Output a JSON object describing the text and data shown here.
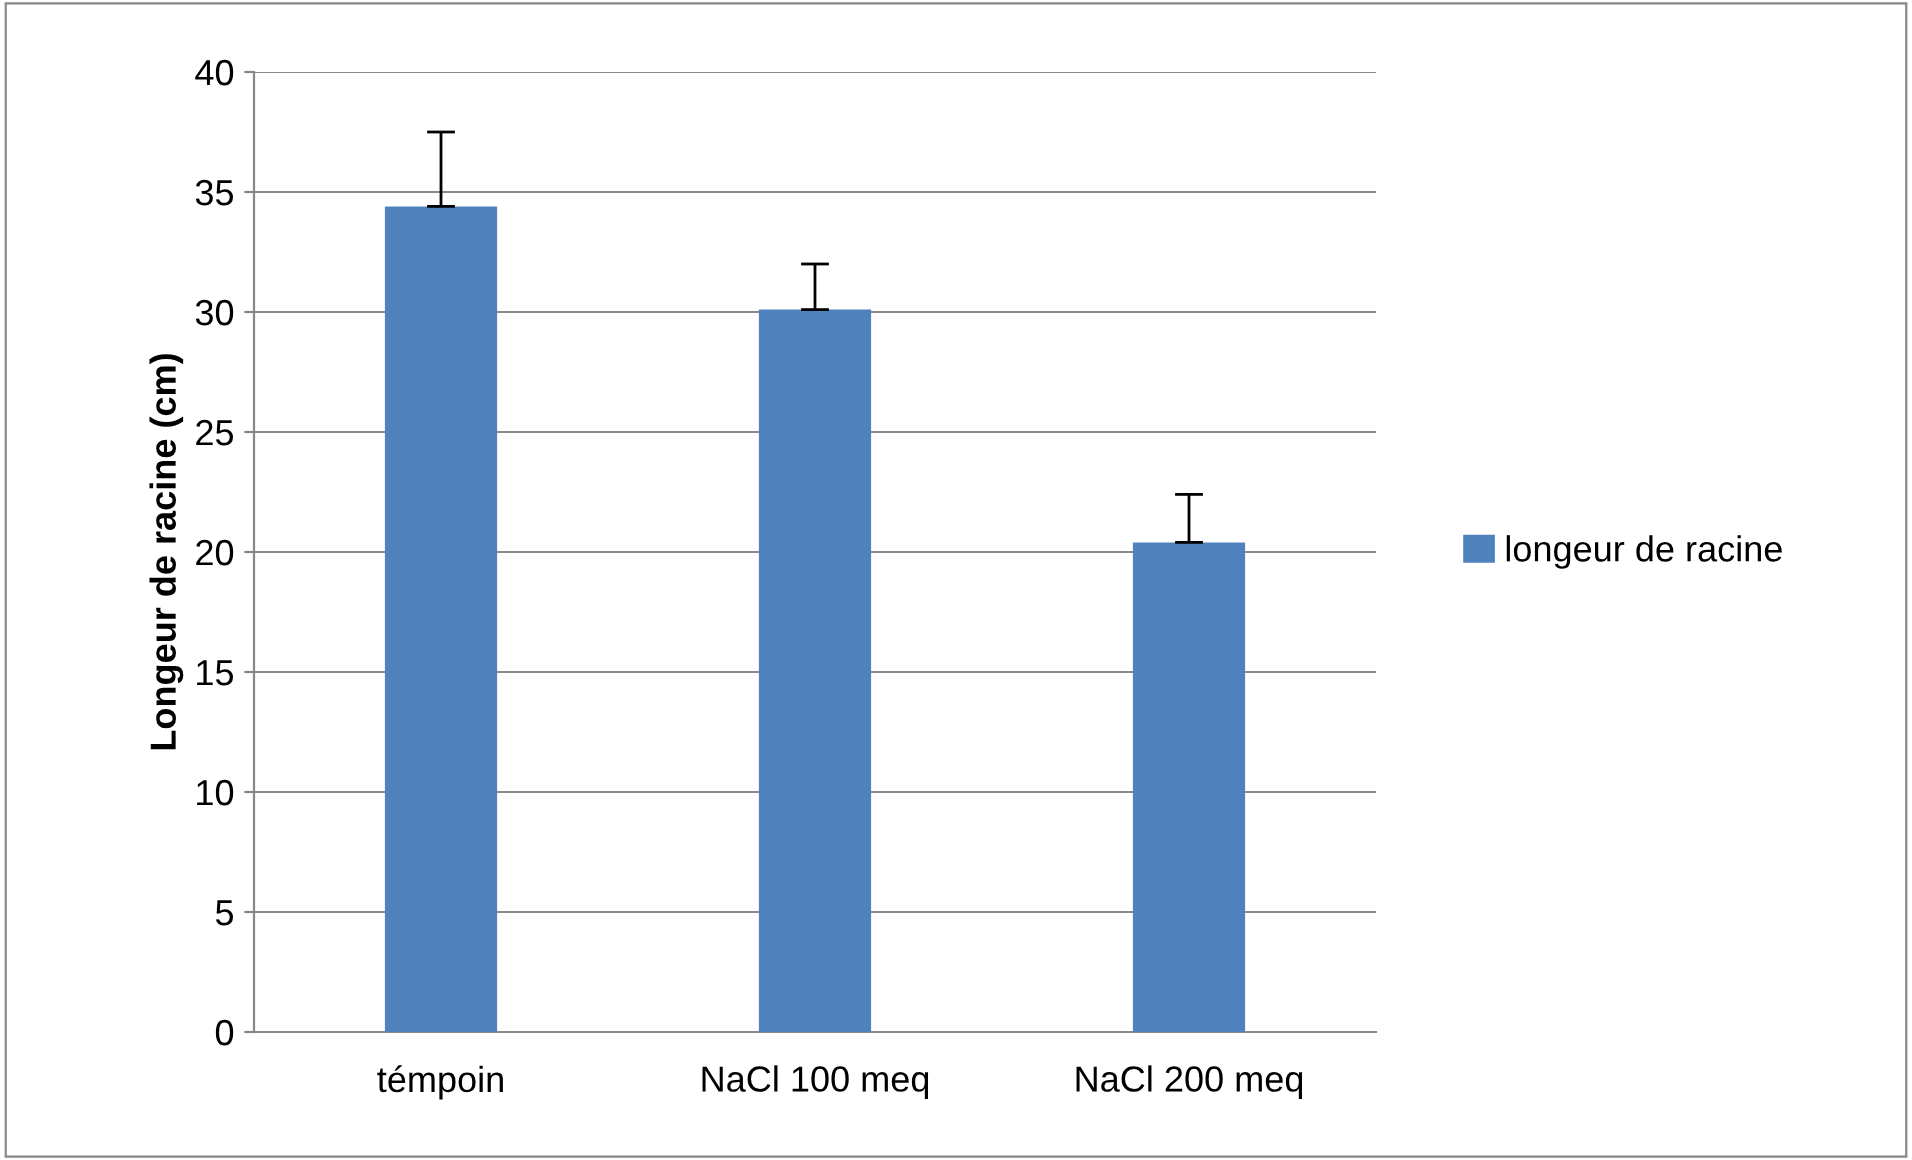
{
  "chart_data": {
    "type": "bar",
    "ylabel": "Longeur de racine (cm)",
    "categories": [
      "témpoin",
      "NaCl 100 meq",
      "NaCl 200 meq"
    ],
    "series": [
      {
        "name": "longeur de racine",
        "color": "#4f81bd",
        "values": [
          34.4,
          30.1,
          20.4
        ],
        "errors": [
          [
            34.4,
            37.5
          ],
          [
            30.1,
            32.0
          ],
          [
            20.4,
            22.4
          ]
        ]
      }
    ],
    "ylim": [
      0,
      40
    ],
    "yticks": [
      0,
      5,
      10,
      15,
      20,
      25,
      30,
      35,
      40
    ],
    "grid": "y",
    "legend": "right"
  }
}
